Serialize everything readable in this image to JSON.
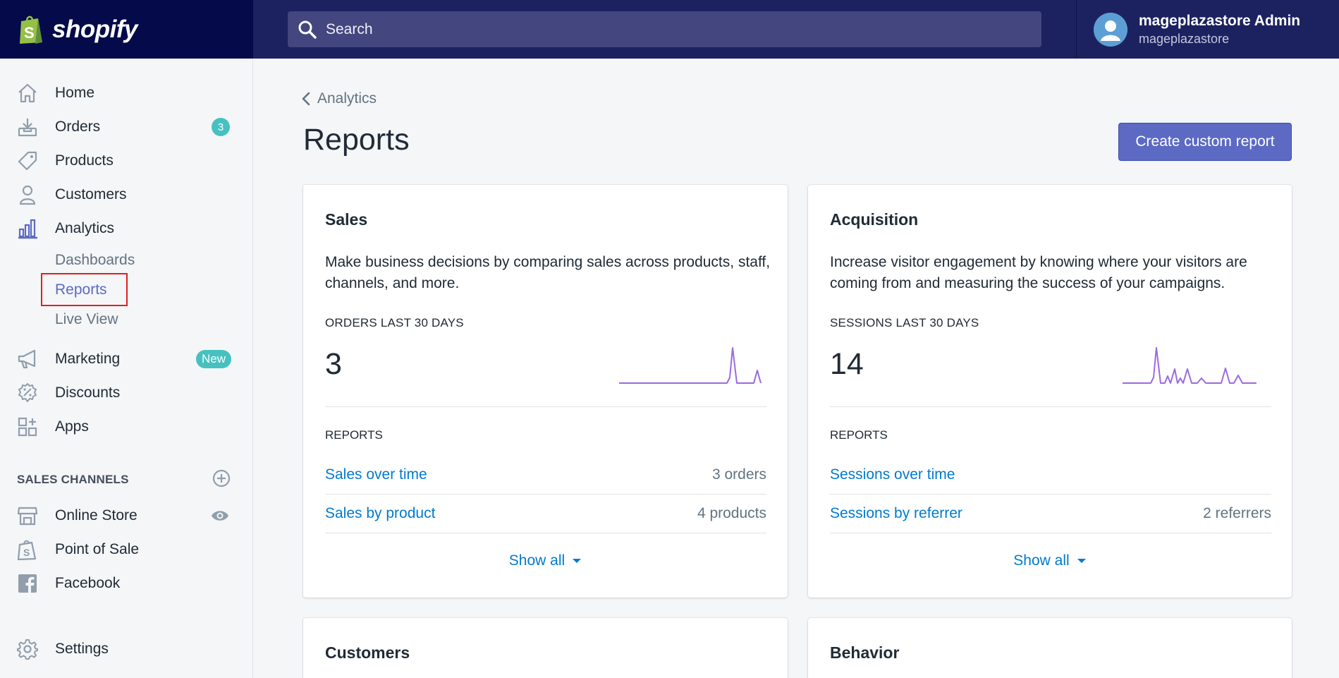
{
  "brand": {
    "logo_text": "shopify"
  },
  "search": {
    "placeholder": "Search"
  },
  "account": {
    "name": "mageplazastore Admin",
    "store": "mageplazastore"
  },
  "sidebar": {
    "items": [
      {
        "label": "Home",
        "icon": "home-icon"
      },
      {
        "label": "Orders",
        "icon": "orders-icon",
        "badge": "3"
      },
      {
        "label": "Products",
        "icon": "tag-icon"
      },
      {
        "label": "Customers",
        "icon": "person-icon"
      },
      {
        "label": "Analytics",
        "icon": "bar-chart-icon"
      }
    ],
    "analytics_sub": [
      {
        "label": "Dashboards"
      },
      {
        "label": "Reports",
        "active": true
      },
      {
        "label": "Live View"
      }
    ],
    "items2": [
      {
        "label": "Marketing",
        "icon": "megaphone-icon",
        "badge": "New"
      },
      {
        "label": "Discounts",
        "icon": "discount-icon"
      },
      {
        "label": "Apps",
        "icon": "apps-icon"
      }
    ],
    "sales_channels_title": "SALES CHANNELS",
    "channels": [
      {
        "label": "Online Store",
        "icon": "store-icon"
      },
      {
        "label": "Point of Sale",
        "icon": "pos-bag-icon"
      },
      {
        "label": "Facebook",
        "icon": "facebook-icon"
      }
    ],
    "settings": {
      "label": "Settings",
      "icon": "gear-icon"
    }
  },
  "breadcrumb": {
    "label": "Analytics"
  },
  "page": {
    "title": "Reports",
    "primary_action": "Create custom report"
  },
  "cards": [
    {
      "title": "Sales",
      "description": "Make business decisions by comparing sales across products, staff, channels, and more.",
      "metric_label": "ORDERS LAST 30 DAYS",
      "metric_value": "3",
      "reports_label": "REPORTS",
      "reports": [
        {
          "name": "Sales over time",
          "count": "3 orders"
        },
        {
          "name": "Sales by product",
          "count": "4 products"
        }
      ],
      "show_all": "Show all"
    },
    {
      "title": "Acquisition",
      "description": "Increase visitor engagement by knowing where your visitors are coming from and measuring the success of your campaigns.",
      "metric_label": "SESSIONS LAST 30 DAYS",
      "metric_value": "14",
      "reports_label": "REPORTS",
      "reports": [
        {
          "name": "Sessions over time",
          "count": ""
        },
        {
          "name": "Sessions by referrer",
          "count": "2 referrers"
        }
      ],
      "show_all": "Show all"
    },
    {
      "title": "Customers"
    },
    {
      "title": "Behavior"
    }
  ],
  "colors": {
    "topbar": "#1c2260",
    "logo_bg": "#050a4a",
    "accent": "#5c6ac4",
    "link": "#007ace",
    "badge": "#47c1bf",
    "sparkline": "#9c6ade"
  }
}
